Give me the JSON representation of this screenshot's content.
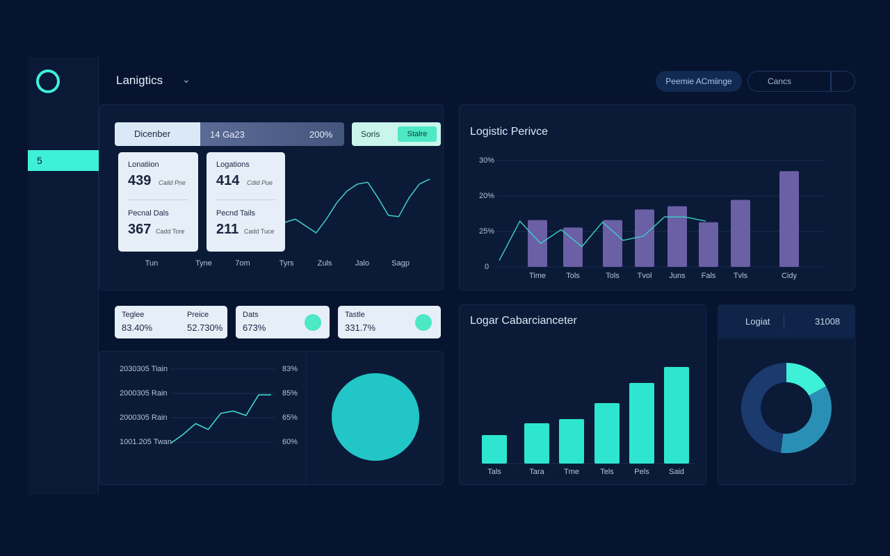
{
  "header": {
    "brand": "Lanigtics",
    "button": "Peemie ACmiinge",
    "search": "Cancs"
  },
  "sidebar": {
    "active": "5"
  },
  "toolbar": {
    "month": "Dicenber",
    "range": "14 Ga23",
    "percent": "200%",
    "filter": "Soris",
    "action": "Stalre"
  },
  "cards": [
    {
      "title": "Lonatiion",
      "value": 439,
      "note": "Caild Pne",
      "title2": "Pecnal Dals",
      "value2": 367,
      "note2": "Cadd Tore"
    },
    {
      "title": "Logations",
      "value": 414,
      "note": "Cdid Pue",
      "title2": "Pecnd Tails",
      "value2": 211,
      "note2": "Cadd Tuce"
    }
  ],
  "trend": {
    "type": "line",
    "x_labels": [
      "Tun",
      "Tyne",
      "7om",
      "Tyrs",
      "Zuls",
      "Jalo",
      "Sagp"
    ],
    "values": [
      28,
      33,
      22,
      11,
      33,
      59,
      78,
      89,
      92,
      67,
      39,
      37,
      67,
      89,
      97
    ],
    "ylim": [
      0,
      100
    ],
    "color": "#3fc9c0"
  },
  "performance": {
    "type": "bar",
    "title": "Logistic Perivce",
    "y_labels": [
      "30%",
      "20%",
      "25%",
      "0"
    ],
    "categories": [
      "Time",
      "Tols",
      "Tols",
      "Tvol",
      "Juns",
      "Fals",
      "Tvls",
      "Cidy"
    ],
    "values": [
      44,
      37,
      44,
      54,
      57,
      42,
      63,
      90
    ],
    "line": [
      6,
      43,
      22,
      35,
      19,
      42,
      25,
      29,
      47,
      47,
      43
    ],
    "ylim": [
      0,
      100
    ],
    "color": "#6b5fa6",
    "line_color": "#3fc9c0"
  },
  "stats": [
    {
      "label": "Teglee",
      "value": "83.40%"
    },
    {
      "label": "Preice",
      "value": "52.730%"
    },
    {
      "label": "Dats",
      "value": "673%"
    },
    {
      "label": "Tastle",
      "value": "331.7%"
    }
  ],
  "growth": {
    "type": "line",
    "left_labels": [
      "2030305 Tiain",
      "2000305 Rain",
      "2000305 Rain",
      "1001.205 Twan"
    ],
    "right_labels": [
      "83%",
      "85%",
      "65%",
      "60%"
    ],
    "values": [
      -2,
      10,
      25,
      17,
      39,
      42,
      36,
      64,
      64
    ],
    "ylim": [
      0,
      100
    ],
    "color": "#3fd8c8"
  },
  "ring": {
    "type": "pie",
    "values": [
      100
    ],
    "colors": [
      "#22c6c6"
    ]
  },
  "capacity": {
    "type": "bar",
    "title": "Logar Cabarcianceter",
    "categories": [
      "Tals",
      "Tara",
      "Tme",
      "Tels",
      "Pels",
      "Said"
    ],
    "values": [
      41,
      58,
      64,
      87,
      116,
      139
    ],
    "ylim": [
      0,
      150
    ],
    "color": "#2ee6cf"
  },
  "summary": {
    "label": "Logiat",
    "value": 31008
  },
  "share": {
    "type": "pie",
    "values": [
      17,
      35,
      48
    ],
    "colors": [
      "#3ff0d8",
      "#2a8fb5",
      "#1b3a6e"
    ]
  }
}
